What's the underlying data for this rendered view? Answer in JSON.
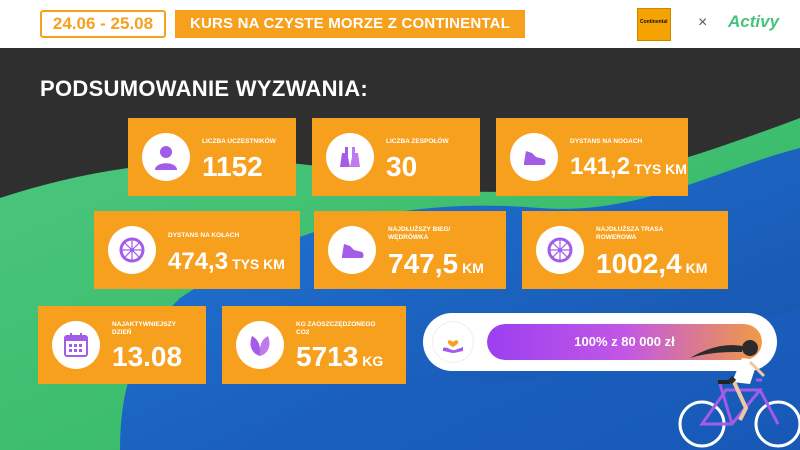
{
  "header": {
    "date_range": "24.06 - 25.08",
    "title": "KURS NA CZYSTE MORZE Z CONTINENTAL",
    "partner_logo": "Continental",
    "separator": "×",
    "brand": "Activy"
  },
  "page_title": "PODSUMOWANIE WYZWANIA:",
  "stats": {
    "participants": {
      "label": "LICZBA UCZESTNIKÓW",
      "value": "1152",
      "icon": "person-icon"
    },
    "teams": {
      "label": "LICZBA ZESPOŁÓW",
      "value": "30",
      "icon": "high-five-icon"
    },
    "foot_distance": {
      "label": "DYSTANS NA NOGACH",
      "value": "141,2",
      "unit": "TYS KM",
      "icon": "shoe-icon"
    },
    "bike_distance": {
      "label": "DYSTANS NA KOŁACH",
      "value": "474,3",
      "unit": "TYS KM",
      "icon": "wheel-icon"
    },
    "longest_run": {
      "label": "NAJDŁUŻSZY BIEG/ WĘDRÓWKA",
      "value": "747,5",
      "unit": "KM",
      "icon": "shoe-icon"
    },
    "longest_ride": {
      "label": "NAJDŁUŻSZA TRASA ROWEROWA",
      "value": "1002,4",
      "unit": "KM",
      "icon": "wheel-icon"
    },
    "most_active_day": {
      "label": "NAJAKTYWNIEJSZY DZIEŃ",
      "value": "13.08",
      "icon": "calendar-icon"
    },
    "co2_saved": {
      "label": "KG ZAOSZCZĘDZONEGO CO2",
      "value": "5713",
      "unit": "KG",
      "icon": "leaf-icon"
    }
  },
  "progress": {
    "text": "100% z 80 000 zł",
    "fraction": 1.0,
    "icon": "heart-hand-icon"
  },
  "colors": {
    "accent": "#f7a01e",
    "dark_bg": "#2f2f2f",
    "green": "#46c37b",
    "blue": "#1c64c8",
    "purple_icon": "#a35be8"
  }
}
